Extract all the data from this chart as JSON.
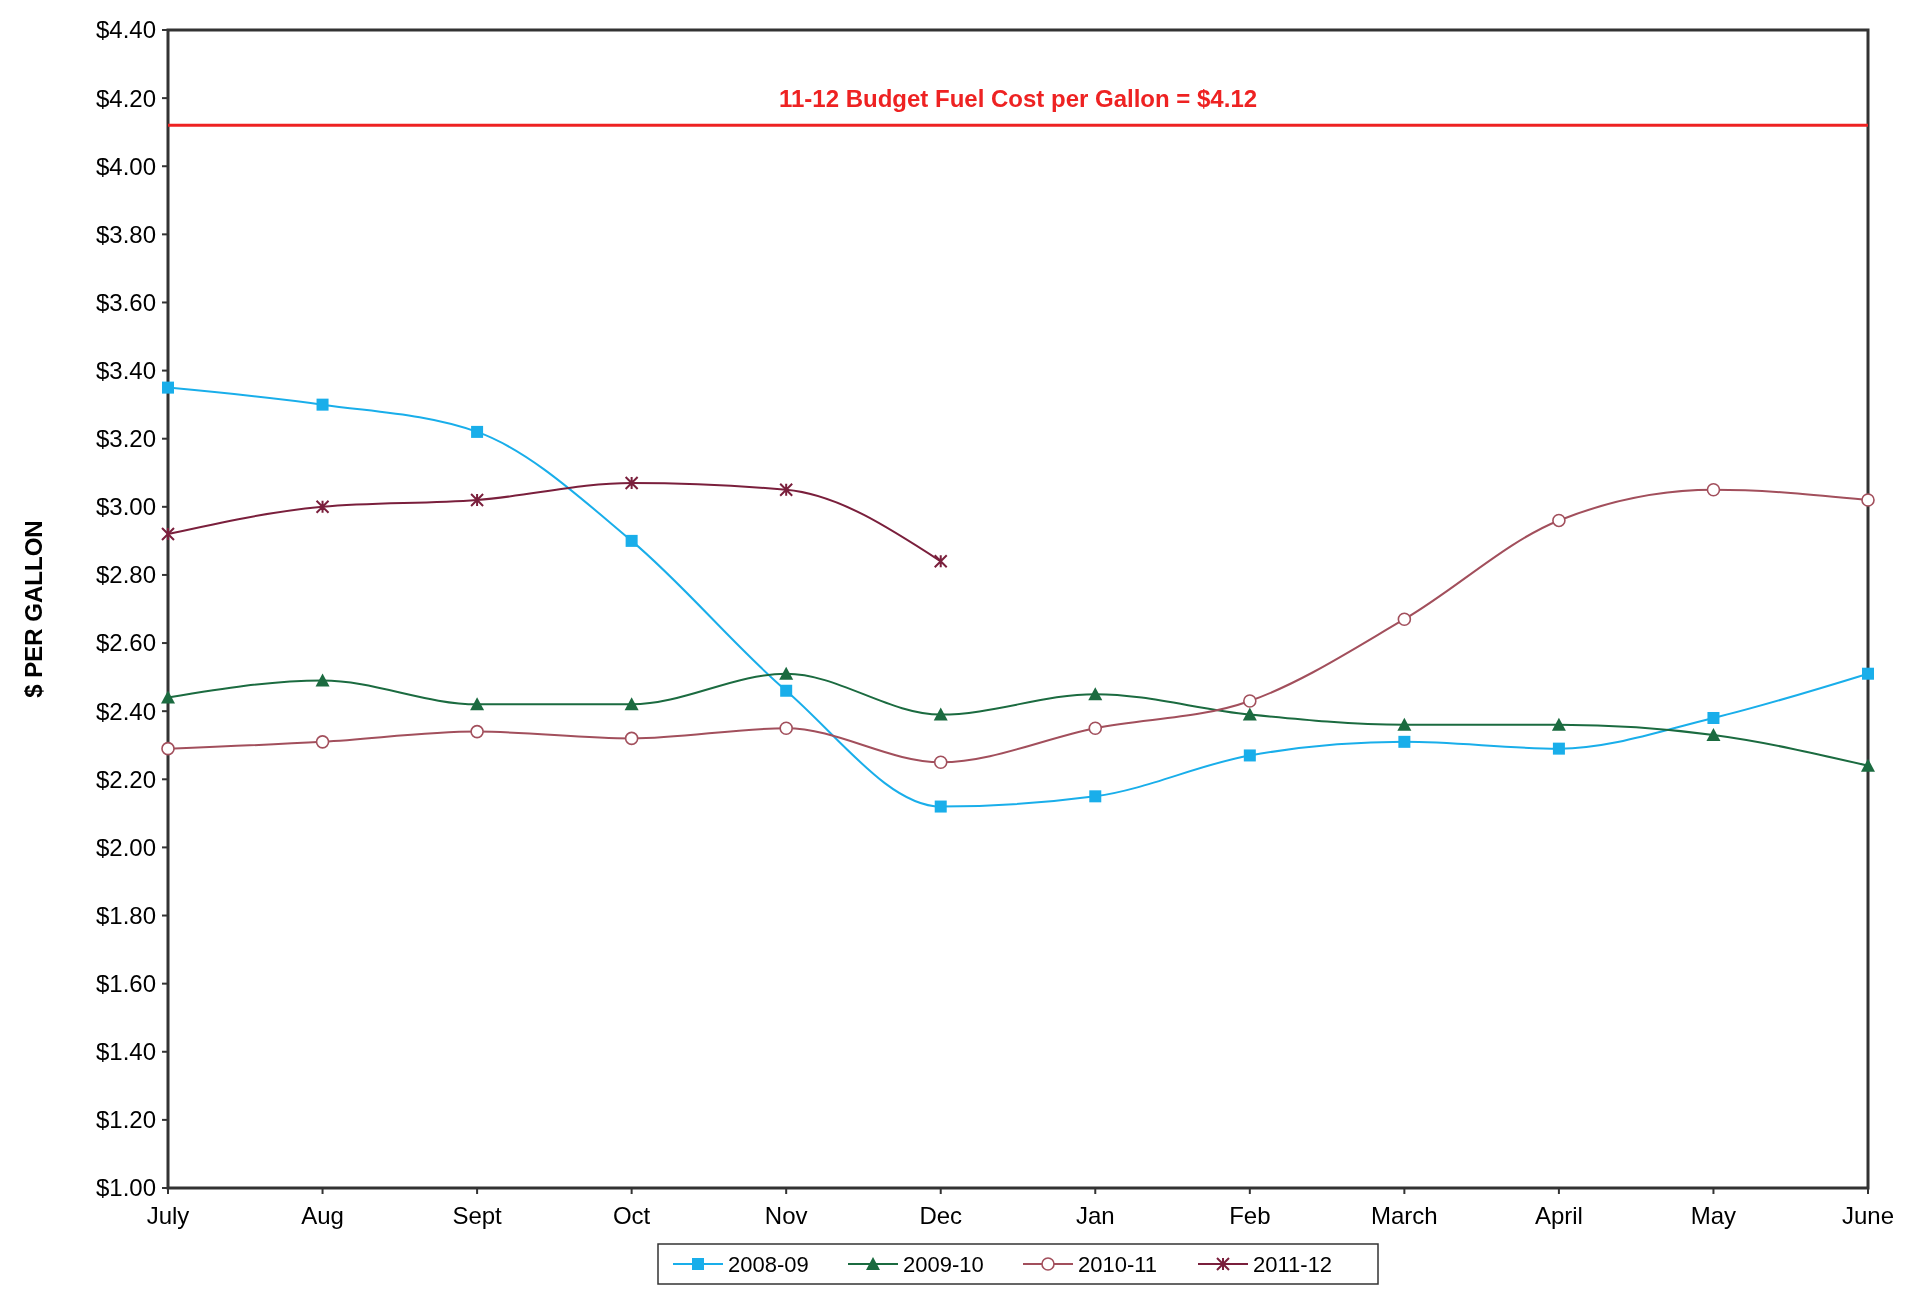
{
  "chart_data": {
    "type": "line",
    "ylabel": "$ PER GALLON",
    "categories": [
      "July",
      "Aug",
      "Sept",
      "Oct",
      "Nov",
      "Dec",
      "Jan",
      "Feb",
      "March",
      "April",
      "May",
      "June"
    ],
    "series": [
      {
        "name": "2008-09",
        "color": "#19aeea",
        "marker": "square",
        "values": [
          3.35,
          3.3,
          3.22,
          2.9,
          2.46,
          2.12,
          2.15,
          2.27,
          2.31,
          2.29,
          2.38,
          2.51
        ]
      },
      {
        "name": "2009-10",
        "color": "#1b6b40",
        "marker": "triangle",
        "values": [
          2.44,
          2.49,
          2.42,
          2.42,
          2.51,
          2.39,
          2.45,
          2.39,
          2.36,
          2.36,
          2.33,
          2.24
        ]
      },
      {
        "name": "2010-11",
        "color": "#a24f5c",
        "marker": "circle",
        "values": [
          2.29,
          2.31,
          2.34,
          2.32,
          2.35,
          2.25,
          2.35,
          2.43,
          2.67,
          2.96,
          3.05,
          3.02
        ]
      },
      {
        "name": "2011-12",
        "color": "#7a1f3c",
        "marker": "cross",
        "values": [
          2.92,
          3.0,
          3.02,
          3.07,
          3.05,
          2.84,
          null,
          null,
          null,
          null,
          null,
          null
        ]
      }
    ],
    "ylim": [
      1,
      4.4
    ],
    "yticks": [
      {
        "value": 1,
        "label": "$1.00"
      },
      {
        "value": 1.2,
        "label": "$1.20"
      },
      {
        "value": 1.4,
        "label": "$1.40"
      },
      {
        "value": 1.6,
        "label": "$1.60"
      },
      {
        "value": 1.8,
        "label": "$1.80"
      },
      {
        "value": 2,
        "label": "$2.00"
      },
      {
        "value": 2.2,
        "label": "$2.20"
      },
      {
        "value": 2.4,
        "label": "$2.40"
      },
      {
        "value": 2.6,
        "label": "$2.60"
      },
      {
        "value": 2.8,
        "label": "$2.80"
      },
      {
        "value": 3,
        "label": "$3.00"
      },
      {
        "value": 3.2,
        "label": "$3.20"
      },
      {
        "value": 3.4,
        "label": "$3.40"
      },
      {
        "value": 3.6,
        "label": "$3.60"
      },
      {
        "value": 3.8,
        "label": "$3.80"
      },
      {
        "value": 4,
        "label": "$4.00"
      },
      {
        "value": 4.2,
        "label": "$4.20"
      },
      {
        "value": 4.4,
        "label": "$4.40"
      }
    ],
    "ref_lines": [
      {
        "axis": "y",
        "value": 4.12,
        "label": "11-12 Budget Fuel Cost per Gallon = $4.12",
        "color": "#ee2222"
      }
    ],
    "grid": false,
    "legend": "bottom",
    "line_style": "solid"
  }
}
